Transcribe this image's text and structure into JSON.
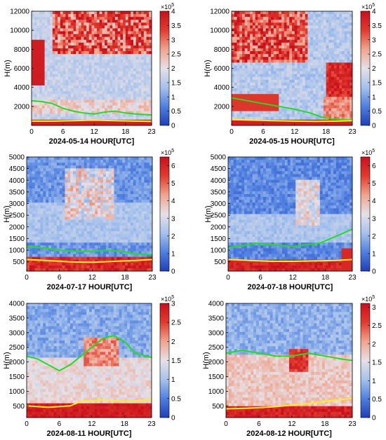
{
  "colorbar_exponent_prefix": "×10",
  "colorbar_exponent_power": "5",
  "colormap": [
    "#1f3fb8",
    "#4f7fe0",
    "#a6c2ec",
    "#e6e0e6",
    "#f0a48e",
    "#e23a2e",
    "#c8101c"
  ],
  "line_colors": {
    "cloud_top": "#22dd22",
    "boundary_layer": "#ffee22"
  },
  "chart_data": [
    {
      "type": "heatmap",
      "xlabel": "2024-05-14 HOUR[UTC]",
      "ylabel": "H(m)",
      "x_ticks": [
        "0",
        "6",
        "12",
        "18",
        "23"
      ],
      "x_values": [
        0,
        6,
        12,
        18,
        23
      ],
      "xlim": [
        0,
        23
      ],
      "y_ticks": [
        "2000",
        "4000",
        "6000",
        "8000",
        "10000",
        "12000"
      ],
      "y_values": [
        2000,
        4000,
        6000,
        8000,
        10000,
        12000
      ],
      "ylim": [
        0,
        12000
      ],
      "colorbar_ticks": [
        "0",
        "0.5",
        "1",
        "1.5",
        "2",
        "2.5",
        "3",
        "3.5",
        "4"
      ],
      "colorbar_values": [
        0,
        0.5,
        1,
        1.5,
        2,
        2.5,
        3,
        3.5,
        4
      ],
      "clim": [
        0,
        4
      ],
      "cloud_top": [
        [
          0,
          2600
        ],
        [
          2,
          2500
        ],
        [
          4,
          2300
        ],
        [
          6,
          1800
        ],
        [
          8,
          1500
        ],
        [
          10,
          1300
        ],
        [
          12,
          1200
        ],
        [
          14,
          1400
        ],
        [
          16,
          1500
        ],
        [
          18,
          1300
        ],
        [
          20,
          1200
        ],
        [
          23,
          1100
        ]
      ],
      "boundary_layer": [
        [
          0,
          450
        ],
        [
          4,
          450
        ],
        [
          8,
          500
        ],
        [
          12,
          550
        ],
        [
          16,
          500
        ],
        [
          20,
          450
        ],
        [
          23,
          420
        ]
      ]
    },
    {
      "type": "heatmap",
      "xlabel": "2024-05-15 HOUR[UTC]",
      "ylabel": "H(m)",
      "x_ticks": [
        "0",
        "6",
        "12",
        "18",
        "23"
      ],
      "x_values": [
        0,
        6,
        12,
        18,
        23
      ],
      "xlim": [
        0,
        23
      ],
      "y_ticks": [
        "2000",
        "4000",
        "6000",
        "8000",
        "10000",
        "12000"
      ],
      "y_values": [
        2000,
        4000,
        6000,
        8000,
        10000,
        12000
      ],
      "ylim": [
        0,
        12000
      ],
      "colorbar_ticks": [
        "0",
        "0.5",
        "1",
        "1.5",
        "2",
        "2.5",
        "3",
        "3.5",
        "4"
      ],
      "colorbar_values": [
        0,
        0.5,
        1,
        1.5,
        2,
        2.5,
        3,
        3.5,
        4
      ],
      "clim": [
        0,
        4
      ],
      "cloud_top": [
        [
          0,
          2900
        ],
        [
          3,
          2600
        ],
        [
          6,
          2300
        ],
        [
          9,
          2000
        ],
        [
          12,
          1700
        ],
        [
          15,
          1300
        ],
        [
          17,
          900
        ],
        [
          19,
          700
        ],
        [
          21,
          600
        ],
        [
          23,
          550
        ]
      ],
      "boundary_layer": [
        [
          0,
          600
        ],
        [
          4,
          550
        ],
        [
          8,
          500
        ],
        [
          12,
          450
        ],
        [
          16,
          420
        ],
        [
          20,
          450
        ],
        [
          23,
          500
        ]
      ]
    },
    {
      "type": "heatmap",
      "xlabel": "2024-07-17 HOUR[UTC]",
      "ylabel": "H(m)",
      "x_ticks": [
        "0",
        "6",
        "12",
        "18",
        "23"
      ],
      "x_values": [
        0,
        6,
        12,
        18,
        23
      ],
      "xlim": [
        0,
        23
      ],
      "y_ticks": [
        "500",
        "1000",
        "1500",
        "2000",
        "2500",
        "3000",
        "3500",
        "4000",
        "4500",
        "5000"
      ],
      "y_values": [
        500,
        1000,
        1500,
        2000,
        2500,
        3000,
        3500,
        4000,
        4500,
        5000
      ],
      "ylim": [
        100,
        5000
      ],
      "colorbar_ticks": [
        "0",
        "1",
        "2",
        "3",
        "4",
        "5",
        "6"
      ],
      "colorbar_values": [
        0,
        1,
        2,
        3,
        4,
        5,
        6
      ],
      "clim": [
        0,
        6.5
      ],
      "cloud_top": [
        [
          0,
          1150
        ],
        [
          3,
          1100
        ],
        [
          6,
          1000
        ],
        [
          9,
          950
        ],
        [
          12,
          950
        ],
        [
          15,
          1000
        ],
        [
          17,
          950
        ],
        [
          20,
          850
        ],
        [
          23,
          800
        ]
      ],
      "boundary_layer": [
        [
          0,
          600
        ],
        [
          4,
          550
        ],
        [
          8,
          500
        ],
        [
          12,
          480
        ],
        [
          16,
          520
        ],
        [
          20,
          560
        ],
        [
          23,
          600
        ]
      ]
    },
    {
      "type": "heatmap",
      "xlabel": "2024-07-18 HOUR[UTC]",
      "ylabel": "H(m)",
      "x_ticks": [
        "0",
        "6",
        "12",
        "18",
        "23"
      ],
      "x_values": [
        0,
        6,
        12,
        18,
        23
      ],
      "xlim": [
        0,
        23
      ],
      "y_ticks": [
        "500",
        "1000",
        "1500",
        "2000",
        "2500",
        "3000",
        "3500",
        "4000",
        "4500",
        "5000"
      ],
      "y_values": [
        500,
        1000,
        1500,
        2000,
        2500,
        3000,
        3500,
        4000,
        4500,
        5000
      ],
      "ylim": [
        100,
        5000
      ],
      "colorbar_ticks": [
        "0",
        "1",
        "2",
        "3",
        "4",
        "5",
        "6"
      ],
      "colorbar_values": [
        0,
        1,
        2,
        3,
        4,
        5,
        6
      ],
      "clim": [
        0,
        6.5
      ],
      "cloud_top": [
        [
          0,
          1100
        ],
        [
          3,
          1200
        ],
        [
          5,
          1300
        ],
        [
          8,
          1250
        ],
        [
          10,
          1200
        ],
        [
          12,
          1150
        ],
        [
          15,
          1250
        ],
        [
          17,
          1300
        ],
        [
          19,
          1500
        ],
        [
          21,
          1700
        ],
        [
          23,
          1900
        ]
      ],
      "boundary_layer": [
        [
          0,
          600
        ],
        [
          4,
          560
        ],
        [
          8,
          520
        ],
        [
          12,
          520
        ],
        [
          16,
          540
        ],
        [
          20,
          560
        ],
        [
          23,
          600
        ]
      ]
    },
    {
      "type": "heatmap",
      "xlabel": "2024-08-11 HOUR[UTC]",
      "ylabel": "H(m)",
      "x_ticks": [
        "0",
        "6",
        "12",
        "18",
        "23"
      ],
      "x_values": [
        0,
        6,
        12,
        18,
        23
      ],
      "xlim": [
        0,
        23
      ],
      "y_ticks": [
        "500",
        "1000",
        "1500",
        "2000",
        "2500",
        "3000",
        "3500",
        "4000"
      ],
      "y_values": [
        500,
        1000,
        1500,
        2000,
        2500,
        3000,
        3500,
        4000
      ],
      "ylim": [
        100,
        4000
      ],
      "colorbar_ticks": [
        "0",
        "0.5",
        "1",
        "1.5",
        "2",
        "2.5",
        "3"
      ],
      "colorbar_values": [
        0,
        0.5,
        1,
        1.5,
        2,
        2.5,
        3
      ],
      "clim": [
        0,
        3
      ],
      "cloud_top": [
        [
          0,
          2200
        ],
        [
          2,
          2100
        ],
        [
          4,
          1900
        ],
        [
          6,
          1700
        ],
        [
          8,
          1900
        ],
        [
          10,
          2200
        ],
        [
          12,
          2500
        ],
        [
          14,
          2800
        ],
        [
          16,
          2900
        ],
        [
          18,
          2700
        ],
        [
          20,
          2300
        ],
        [
          22,
          2200
        ],
        [
          23,
          2150
        ]
      ],
      "boundary_layer": [
        [
          0,
          500
        ],
        [
          4,
          450
        ],
        [
          8,
          500
        ],
        [
          10,
          650
        ],
        [
          14,
          700
        ],
        [
          18,
          650
        ],
        [
          23,
          700
        ]
      ]
    },
    {
      "type": "heatmap",
      "xlabel": "2024-08-12 HOUR[UTC]",
      "ylabel": "H(m)",
      "x_ticks": [
        "0",
        "6",
        "12",
        "18",
        "23"
      ],
      "x_values": [
        0,
        6,
        12,
        18,
        23
      ],
      "xlim": [
        0,
        23
      ],
      "y_ticks": [
        "500",
        "1000",
        "1500",
        "2000",
        "2500",
        "3000",
        "3500",
        "4000"
      ],
      "y_values": [
        500,
        1000,
        1500,
        2000,
        2500,
        3000,
        3500,
        4000
      ],
      "ylim": [
        100,
        4000
      ],
      "colorbar_ticks": [
        "0",
        "0.5",
        "1",
        "1.5",
        "2",
        "2.5",
        "3"
      ],
      "colorbar_values": [
        0,
        0.5,
        1,
        1.5,
        2,
        2.5,
        3
      ],
      "clim": [
        0,
        3.1
      ],
      "cloud_top": [
        [
          0,
          2300
        ],
        [
          3,
          2400
        ],
        [
          6,
          2300
        ],
        [
          9,
          2200
        ],
        [
          12,
          2200
        ],
        [
          15,
          2300
        ],
        [
          18,
          2200
        ],
        [
          21,
          2100
        ],
        [
          23,
          2050
        ]
      ],
      "boundary_layer": [
        [
          0,
          400
        ],
        [
          4,
          420
        ],
        [
          8,
          460
        ],
        [
          12,
          520
        ],
        [
          16,
          600
        ],
        [
          20,
          700
        ],
        [
          23,
          750
        ]
      ]
    }
  ]
}
